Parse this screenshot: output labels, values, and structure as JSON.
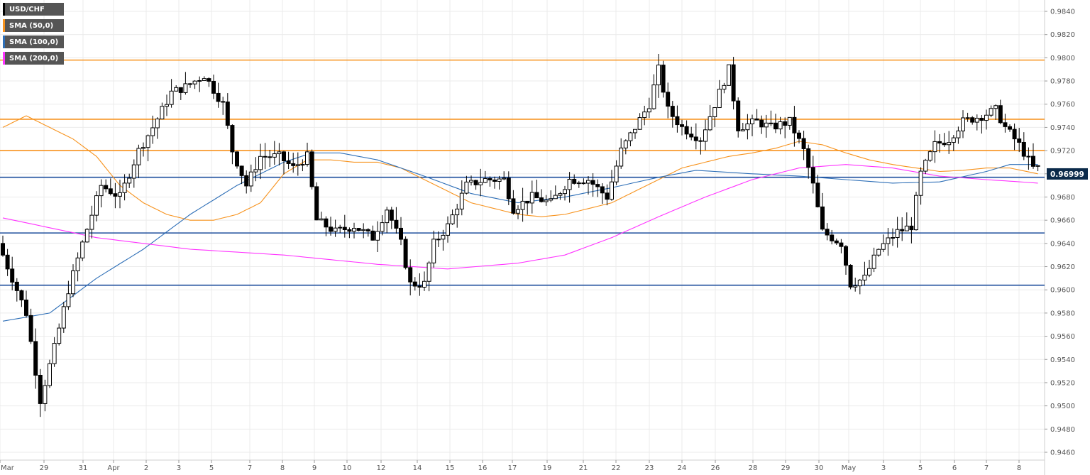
{
  "chart_data": {
    "type": "candlestick",
    "symbol": "USD/CHF",
    "price_axis": {
      "ylim": [
        0.945,
        0.985
      ],
      "ticks": [
        "0.9840",
        "0.9820",
        "0.9800",
        "0.9780",
        "0.9760",
        "0.9740",
        "0.9720",
        "0.9700",
        "0.9680",
        "0.9660",
        "0.9640",
        "0.9620",
        "0.9600",
        "0.9580",
        "0.9560",
        "0.9540",
        "0.9520",
        "0.9500",
        "0.9480",
        "0.9460"
      ],
      "current_price_label": "0.96999",
      "current_price": 0.96999
    },
    "time_axis": {
      "labels": [
        "Mar",
        "29",
        "31",
        "Apr",
        "2",
        "3",
        "5",
        "7",
        "8",
        "9",
        "10",
        "12",
        "14",
        "15",
        "16",
        "17",
        "19",
        "21",
        "22",
        "23",
        "24",
        "26",
        "28",
        "29",
        "30",
        "May",
        "3",
        "5",
        "6",
        "7",
        "8"
      ]
    },
    "legend": [
      {
        "name": "USD/CHF",
        "color": "#000000"
      },
      {
        "name": "SMA (50,0)",
        "color": "#f7931e"
      },
      {
        "name": "SMA (100,0)",
        "color": "#2e6fb7"
      },
      {
        "name": "SMA (200,0)",
        "color": "#ff33ff"
      }
    ],
    "horizontal_levels": [
      {
        "value": 0.9798,
        "color": "#f7931e"
      },
      {
        "value": 0.9747,
        "color": "#f7931e"
      },
      {
        "value": 0.972,
        "color": "#f7931e"
      },
      {
        "value": 0.9697,
        "color": "#1e4e9c"
      },
      {
        "value": 0.9649,
        "color": "#1e4e9c"
      },
      {
        "value": 0.9604,
        "color": "#1e4e9c"
      }
    ],
    "candle_path_keypoints": [
      [
        0,
        0.964
      ],
      [
        3,
        0.961
      ],
      [
        6,
        0.958
      ],
      [
        9,
        0.9505
      ],
      [
        12,
        0.955
      ],
      [
        15,
        0.96
      ],
      [
        18,
        0.964
      ],
      [
        22,
        0.969
      ],
      [
        26,
        0.968
      ],
      [
        30,
        0.972
      ],
      [
        33,
        0.974
      ],
      [
        37,
        0.977
      ],
      [
        40,
        0.9775
      ],
      [
        44,
        0.9785
      ],
      [
        48,
        0.976
      ],
      [
        50,
        0.972
      ],
      [
        53,
        0.969
      ],
      [
        56,
        0.9715
      ],
      [
        60,
        0.9715
      ],
      [
        63,
        0.9705
      ],
      [
        66,
        0.9715
      ],
      [
        68,
        0.966
      ],
      [
        72,
        0.965
      ],
      [
        76,
        0.9655
      ],
      [
        80,
        0.9645
      ],
      [
        83,
        0.967
      ],
      [
        86,
        0.964
      ],
      [
        88,
        0.9605
      ],
      [
        91,
        0.9605
      ],
      [
        93,
        0.964
      ],
      [
        96,
        0.9655
      ],
      [
        100,
        0.969
      ],
      [
        104,
        0.9695
      ],
      [
        108,
        0.9695
      ],
      [
        110,
        0.967
      ],
      [
        114,
        0.968
      ],
      [
        118,
        0.9675
      ],
      [
        122,
        0.9695
      ],
      [
        126,
        0.9695
      ],
      [
        130,
        0.968
      ],
      [
        133,
        0.972
      ],
      [
        136,
        0.974
      ],
      [
        139,
        0.976
      ],
      [
        141,
        0.979
      ],
      [
        143,
        0.9755
      ],
      [
        146,
        0.974
      ],
      [
        150,
        0.973
      ],
      [
        153,
        0.976
      ],
      [
        156,
        0.979
      ],
      [
        158,
        0.974
      ],
      [
        162,
        0.9745
      ],
      [
        165,
        0.974
      ],
      [
        169,
        0.9745
      ],
      [
        172,
        0.972
      ],
      [
        174,
        0.969
      ],
      [
        176,
        0.965
      ],
      [
        180,
        0.964
      ],
      [
        182,
        0.9605
      ],
      [
        185,
        0.961
      ],
      [
        188,
        0.9635
      ],
      [
        192,
        0.965
      ],
      [
        195,
        0.9655
      ],
      [
        197,
        0.97
      ],
      [
        200,
        0.9725
      ],
      [
        203,
        0.973
      ],
      [
        206,
        0.9745
      ],
      [
        210,
        0.975
      ],
      [
        213,
        0.9755
      ],
      [
        215,
        0.974
      ],
      [
        218,
        0.9725
      ],
      [
        221,
        0.9705
      ]
    ],
    "sma50_points": [
      [
        0,
        0.974
      ],
      [
        5,
        0.975
      ],
      [
        10,
        0.974
      ],
      [
        15,
        0.973
      ],
      [
        20,
        0.9715
      ],
      [
        25,
        0.969
      ],
      [
        30,
        0.9675
      ],
      [
        35,
        0.9665
      ],
      [
        40,
        0.966
      ],
      [
        45,
        0.966
      ],
      [
        50,
        0.9665
      ],
      [
        55,
        0.9675
      ],
      [
        60,
        0.97
      ],
      [
        65,
        0.9712
      ],
      [
        70,
        0.9712
      ],
      [
        75,
        0.971
      ],
      [
        80,
        0.971
      ],
      [
        85,
        0.9705
      ],
      [
        90,
        0.9695
      ],
      [
        95,
        0.9685
      ],
      [
        100,
        0.9675
      ],
      [
        105,
        0.967
      ],
      [
        110,
        0.9665
      ],
      [
        115,
        0.9663
      ],
      [
        120,
        0.9665
      ],
      [
        125,
        0.967
      ],
      [
        130,
        0.9675
      ],
      [
        135,
        0.9685
      ],
      [
        140,
        0.9695
      ],
      [
        145,
        0.9705
      ],
      [
        150,
        0.971
      ],
      [
        155,
        0.9715
      ],
      [
        160,
        0.9718
      ],
      [
        165,
        0.9722
      ],
      [
        170,
        0.9728
      ],
      [
        175,
        0.9725
      ],
      [
        180,
        0.9718
      ],
      [
        185,
        0.9712
      ],
      [
        190,
        0.9708
      ],
      [
        195,
        0.9705
      ],
      [
        200,
        0.9702
      ],
      [
        205,
        0.9703
      ],
      [
        210,
        0.9705
      ],
      [
        215,
        0.9705
      ],
      [
        221,
        0.97
      ]
    ],
    "sma100_points": [
      [
        0,
        0.9573
      ],
      [
        10,
        0.958
      ],
      [
        20,
        0.961
      ],
      [
        30,
        0.9635
      ],
      [
        40,
        0.9665
      ],
      [
        50,
        0.969
      ],
      [
        60,
        0.971
      ],
      [
        66,
        0.9718
      ],
      [
        72,
        0.9718
      ],
      [
        80,
        0.9712
      ],
      [
        90,
        0.9698
      ],
      [
        100,
        0.9683
      ],
      [
        110,
        0.9675
      ],
      [
        120,
        0.968
      ],
      [
        130,
        0.9688
      ],
      [
        140,
        0.9697
      ],
      [
        148,
        0.9703
      ],
      [
        160,
        0.97
      ],
      [
        170,
        0.9698
      ],
      [
        180,
        0.9695
      ],
      [
        190,
        0.9692
      ],
      [
        200,
        0.9693
      ],
      [
        210,
        0.9702
      ],
      [
        215,
        0.9708
      ],
      [
        221,
        0.9708
      ]
    ],
    "sma200_points": [
      [
        0,
        0.9662
      ],
      [
        20,
        0.9645
      ],
      [
        40,
        0.9635
      ],
      [
        60,
        0.963
      ],
      [
        80,
        0.9622
      ],
      [
        95,
        0.9618
      ],
      [
        110,
        0.9623
      ],
      [
        120,
        0.963
      ],
      [
        130,
        0.9645
      ],
      [
        140,
        0.9663
      ],
      [
        150,
        0.968
      ],
      [
        160,
        0.9695
      ],
      [
        170,
        0.9705
      ],
      [
        180,
        0.9708
      ],
      [
        190,
        0.9705
      ],
      [
        200,
        0.9698
      ],
      [
        210,
        0.9695
      ],
      [
        221,
        0.9692
      ]
    ]
  }
}
